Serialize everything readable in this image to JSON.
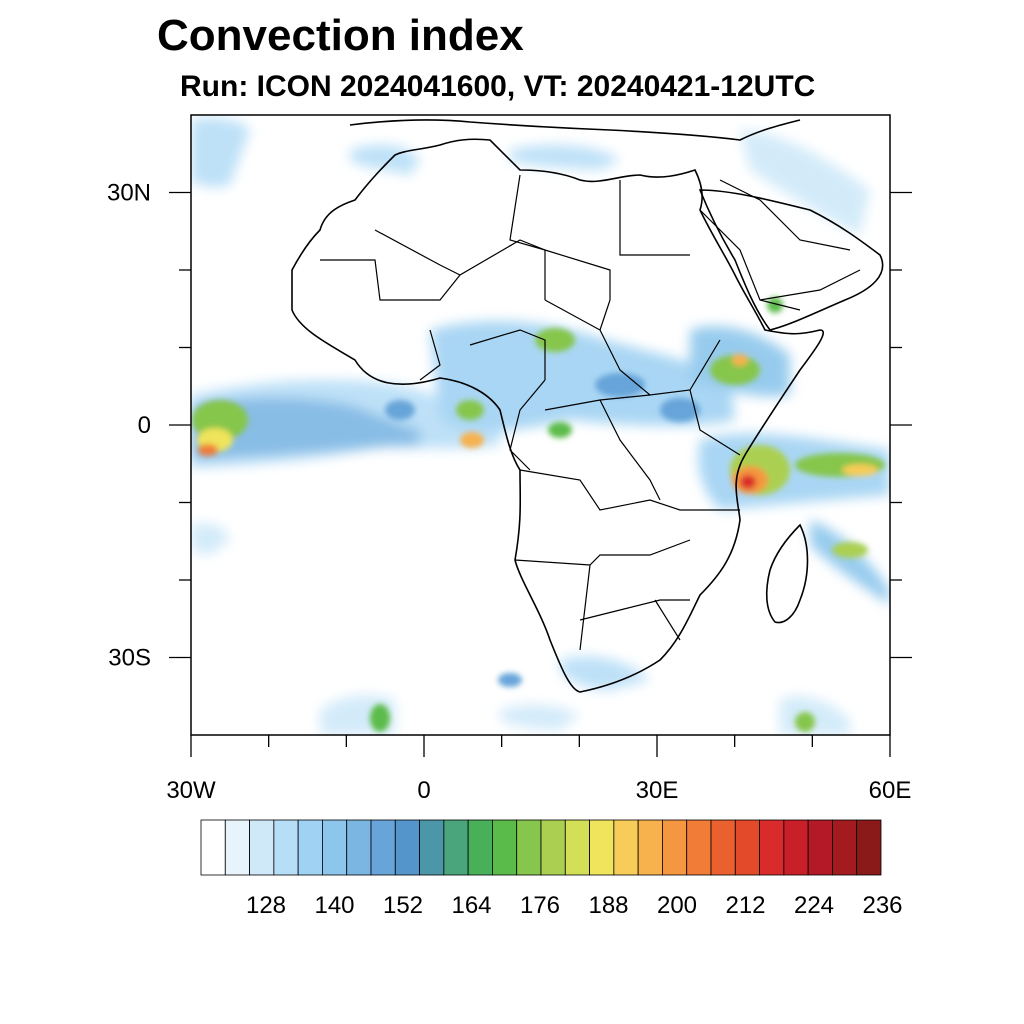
{
  "title": "Convection index",
  "subtitle": "Run: ICON 2024041600,  VT: 20240421-12UTC",
  "map": {
    "region": "Africa",
    "lon_range": [
      -30,
      60
    ],
    "lat_range": [
      -40,
      40
    ],
    "lon_ticks": [
      {
        "value": -30,
        "label": "30W"
      },
      {
        "value": 0,
        "label": "0"
      },
      {
        "value": 30,
        "label": "30E"
      },
      {
        "value": 60,
        "label": "60E"
      }
    ],
    "lat_ticks": [
      {
        "value": 30,
        "label": "30N"
      },
      {
        "value": 0,
        "label": "0"
      },
      {
        "value": -30,
        "label": "30S"
      }
    ],
    "minor_lon_ticks": [
      -20,
      -10,
      10,
      20,
      40,
      50
    ],
    "minor_lat_ticks": [
      20,
      10,
      -10,
      -20
    ]
  },
  "colorbar": {
    "colors": [
      "#ffffff",
      "#e8f4fc",
      "#cfe9f9",
      "#b7def7",
      "#a0d2f3",
      "#8cc6ec",
      "#7bb6e3",
      "#66a4d9",
      "#5496cc",
      "#4b96a8",
      "#4aa57c",
      "#49b05a",
      "#5bbb4a",
      "#86c64c",
      "#abd051",
      "#d4df58",
      "#efe45c",
      "#f8cc58",
      "#f7b14d",
      "#f59641",
      "#f07c37",
      "#ea612f",
      "#e34a2a",
      "#d92b2b",
      "#c81f29",
      "#b31926",
      "#a31a1f",
      "#8a1a1a"
    ],
    "tick_labels": [
      "128",
      "140",
      "152",
      "164",
      "176",
      "188",
      "200",
      "212",
      "224",
      "236"
    ]
  }
}
